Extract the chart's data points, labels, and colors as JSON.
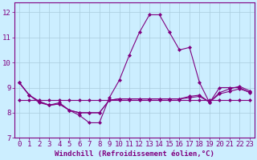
{
  "title": "",
  "xlabel": "Windchill (Refroidissement éolien,°C)",
  "ylabel": "",
  "bg_color": "#cceeff",
  "line_color": "#800080",
  "ylim": [
    7,
    12.4
  ],
  "xlim": [
    -0.5,
    23.5
  ],
  "yticks": [
    7,
    8,
    9,
    10,
    11,
    12
  ],
  "xticks": [
    0,
    1,
    2,
    3,
    4,
    5,
    6,
    7,
    8,
    9,
    10,
    11,
    12,
    13,
    14,
    15,
    16,
    17,
    18,
    19,
    20,
    21,
    22,
    23
  ],
  "series": [
    [
      9.2,
      8.7,
      8.4,
      8.3,
      8.4,
      8.1,
      7.9,
      7.6,
      7.6,
      8.6,
      9.3,
      10.3,
      11.2,
      11.9,
      11.9,
      11.2,
      10.5,
      10.6,
      9.2,
      8.4,
      9.0,
      9.0,
      9.0,
      8.8
    ],
    [
      9.2,
      8.7,
      8.45,
      8.3,
      8.35,
      8.1,
      8.0,
      8.0,
      8.0,
      8.5,
      8.55,
      8.55,
      8.55,
      8.55,
      8.55,
      8.55,
      8.55,
      8.6,
      8.65,
      8.42,
      8.75,
      8.85,
      8.95,
      8.82
    ],
    [
      9.2,
      8.7,
      8.45,
      8.3,
      8.35,
      8.1,
      8.0,
      8.0,
      8.0,
      8.5,
      8.55,
      8.55,
      8.55,
      8.55,
      8.55,
      8.55,
      8.55,
      8.65,
      8.7,
      8.42,
      8.8,
      8.95,
      9.05,
      8.87
    ],
    [
      8.5,
      8.5,
      8.5,
      8.5,
      8.5,
      8.5,
      8.5,
      8.5,
      8.5,
      8.5,
      8.5,
      8.5,
      8.5,
      8.5,
      8.5,
      8.5,
      8.5,
      8.5,
      8.5,
      8.5,
      8.5,
      8.5,
      8.5,
      8.5
    ]
  ],
  "grid_color": "#aaccdd",
  "font_color": "#800080",
  "font_size": 6.5,
  "marker": "D",
  "markersize": 2.0,
  "linewidth": 0.8
}
